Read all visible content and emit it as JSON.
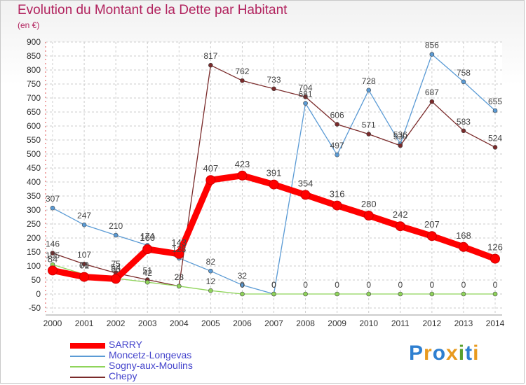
{
  "title": "Evolution du Montant de la Dette par Habitant",
  "subtitle": "(en €)",
  "logo": {
    "text": "Proxiti",
    "letter_colors": [
      "#2e7fd0",
      "#e89a1e",
      "#2e7fd0",
      "#e89a1e",
      "#5aa02c",
      "#2e7fd0",
      "#e89a1e"
    ]
  },
  "chart_data": {
    "type": "line",
    "x": [
      "2000",
      "2001",
      "2002",
      "2003",
      "2004",
      "2005",
      "2006",
      "2007",
      "2008",
      "2009",
      "2010",
      "2011",
      "2012",
      "2013",
      "2014"
    ],
    "ylim": [
      -50,
      900
    ],
    "yticks": [
      -50,
      0,
      50,
      100,
      150,
      200,
      250,
      300,
      350,
      400,
      450,
      500,
      550,
      600,
      650,
      700,
      750,
      800,
      850,
      900
    ],
    "grid": true,
    "legend_position": "bottom-left",
    "series": [
      {
        "name": "SARRY",
        "color": "#ff0000",
        "values": [
          84,
          61,
          54,
          160,
          143,
          407,
          423,
          391,
          354,
          316,
          280,
          242,
          207,
          168,
          126
        ]
      },
      {
        "name": "Moncetz-Longevas",
        "color": "#5b9bd5",
        "values": [
          307,
          247,
          210,
          174,
          128,
          82,
          32,
          0,
          681,
          497,
          728,
          536,
          856,
          758,
          655
        ]
      },
      {
        "name": "Sogny-aux-Moulins",
        "color": "#8fd45a",
        "values": [
          105,
          70,
          56,
          42,
          28,
          12,
          0,
          0,
          0,
          0,
          0,
          0,
          0,
          0,
          0
        ]
      },
      {
        "name": "Chepy",
        "color": "#7a2a2a",
        "values": [
          146,
          107,
          75,
          51,
          28,
          817,
          762,
          733,
          704,
          606,
          571,
          530,
          687,
          583,
          524
        ]
      }
    ]
  }
}
